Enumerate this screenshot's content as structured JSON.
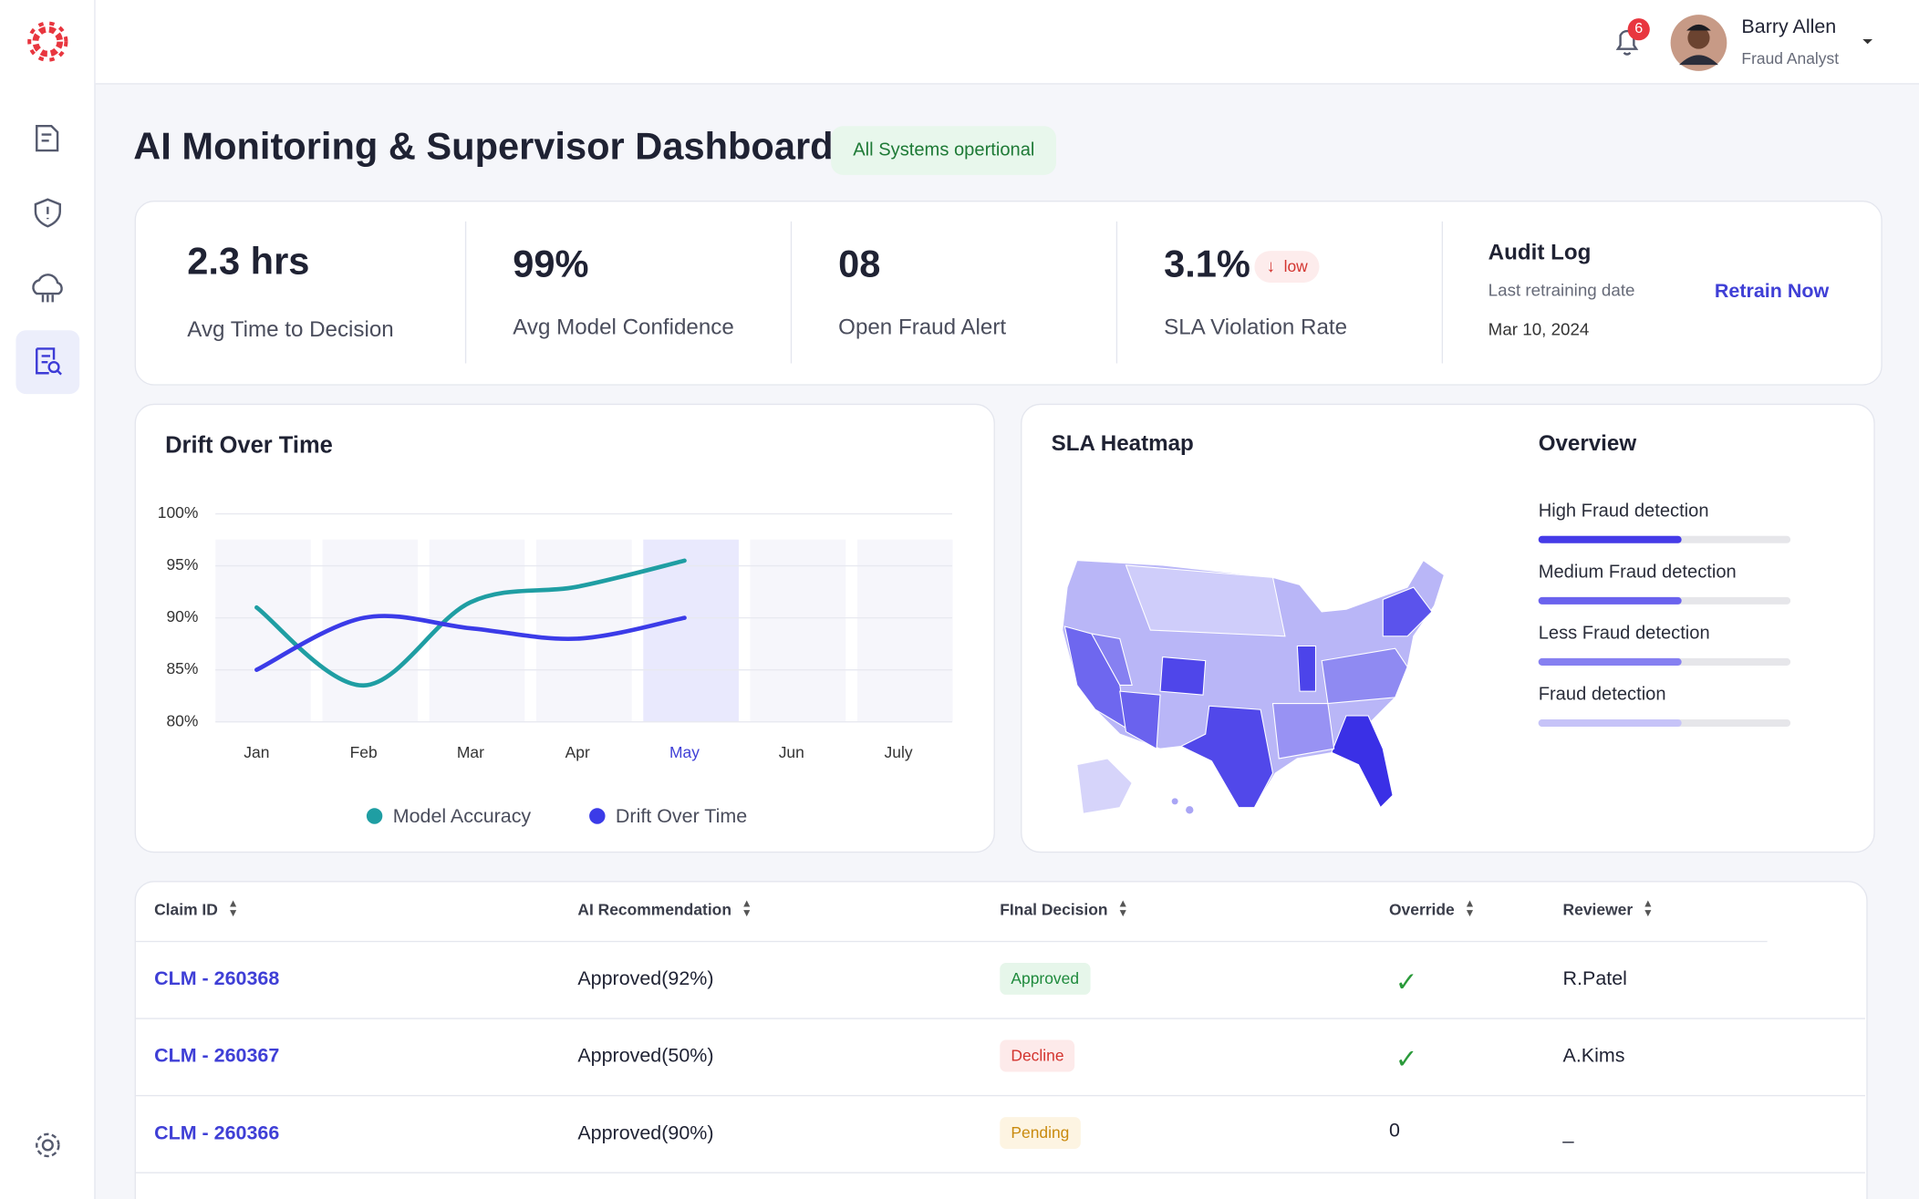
{
  "header": {
    "notifications": 6,
    "user_name": "Barry Allen",
    "user_role": "Fraud Analyst"
  },
  "title": "AI Monitoring & Supervisor Dashboard",
  "status": "All Systems opertional",
  "kpis": [
    {
      "value": "2.3 hrs",
      "label": "Avg Time to Decision"
    },
    {
      "value": "99%",
      "label": "Avg Model Confidence"
    },
    {
      "value": "08",
      "label": "Open Fraud Alert"
    },
    {
      "value": "3.1%",
      "label": "SLA Violation Rate",
      "badge": "low"
    }
  ],
  "audit_log": {
    "title": "Audit Log",
    "subtitle": "Last retraining date",
    "date": "Mar 10, 2024",
    "action": "Retrain Now"
  },
  "chart_data": {
    "type": "line",
    "title": "Drift Over Time",
    "categories": [
      "Jan",
      "Feb",
      "Mar",
      "Apr",
      "May",
      "Jun",
      "July"
    ],
    "highlight": 4,
    "series": [
      {
        "name": "Model Accuracy",
        "color": "#1f9ea3",
        "values": [
          91,
          83.5,
          91.5,
          93,
          95.5,
          null,
          null
        ]
      },
      {
        "name": "Drift Over Time",
        "color": "#3b3be8",
        "values": [
          85,
          90,
          89,
          88,
          90,
          null,
          null
        ]
      }
    ],
    "ylim": [
      80,
      100
    ],
    "yticks": [
      {
        "value": 80,
        "label": "80%"
      },
      {
        "value": 85,
        "label": "85%"
      },
      {
        "value": 90,
        "label": "90%"
      },
      {
        "value": 95,
        "label": "95%"
      },
      {
        "value": 100,
        "label": "100%"
      }
    ],
    "grid": true
  },
  "heatmap": {
    "title": "SLA Heatmap"
  },
  "overview": {
    "title": "Overview",
    "items": [
      {
        "label": "High Fraud detection",
        "value": 57,
        "color": "#453be8"
      },
      {
        "label": "Medium Fraud detection",
        "value": 57,
        "color": "#6a62ee"
      },
      {
        "label": "Less Fraud detection",
        "value": 57,
        "color": "#8680f1"
      },
      {
        "label": "Fraud detection",
        "value": 57,
        "color": "#c6c3f8"
      }
    ]
  },
  "table": {
    "columns": [
      "Claim ID",
      "AI Recommendation",
      "FInal Decision",
      "Override",
      "Reviewer"
    ],
    "rows": [
      {
        "claim_id": "CLM - 260368",
        "recommendation": "Approved(92%)",
        "decision": "Approved",
        "decision_color": "#1e8a3c",
        "decision_bg": "#e6f6ea",
        "override": true,
        "reviewer": "R.Patel"
      },
      {
        "claim_id": "CLM - 260367",
        "recommendation": "Approved(50%)",
        "decision": "Decline",
        "decision_color": "#d3342f",
        "decision_bg": "#fdeaea",
        "override": true,
        "reviewer": "A.Kims"
      },
      {
        "claim_id": "CLM - 260366",
        "recommendation": "Approved(90%)",
        "decision": "Pending",
        "decision_color": "#c98a0e",
        "decision_bg": "#fdf4e2",
        "override": "0",
        "reviewer": "_"
      }
    ]
  }
}
